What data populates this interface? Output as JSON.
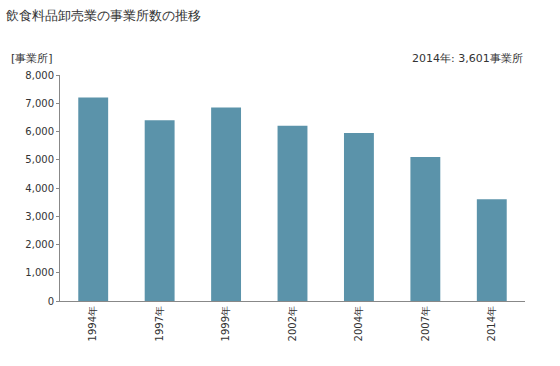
{
  "chart_data": {
    "type": "bar",
    "title": "飲食料品卸売業の事業所数の推移",
    "y_label": "[事業所]",
    "annotations": [
      {
        "text": "2014年: 3,601事業所"
      }
    ],
    "categories": [
      "1994年",
      "1997年",
      "1999年",
      "2002年",
      "2004年",
      "2007年",
      "2014年"
    ],
    "values": [
      7200,
      6400,
      6850,
      6200,
      5950,
      5100,
      3601
    ],
    "color": "#5b93aa",
    "ylim": [
      0,
      8000
    ],
    "yticks": [
      0,
      {
        "value": 1000,
        "label": "1,000"
      },
      {
        "value": 2000,
        "label": "2,000"
      },
      {
        "value": 3000,
        "label": "3,000"
      },
      {
        "value": 4000,
        "label": "4,000"
      },
      {
        "value": 5000,
        "label": "5,000"
      },
      {
        "value": 6000,
        "label": "6,000"
      },
      {
        "value": 7000,
        "label": "7,000"
      },
      {
        "value": 8000,
        "label": "8,000"
      }
    ],
    "grid": false
  }
}
